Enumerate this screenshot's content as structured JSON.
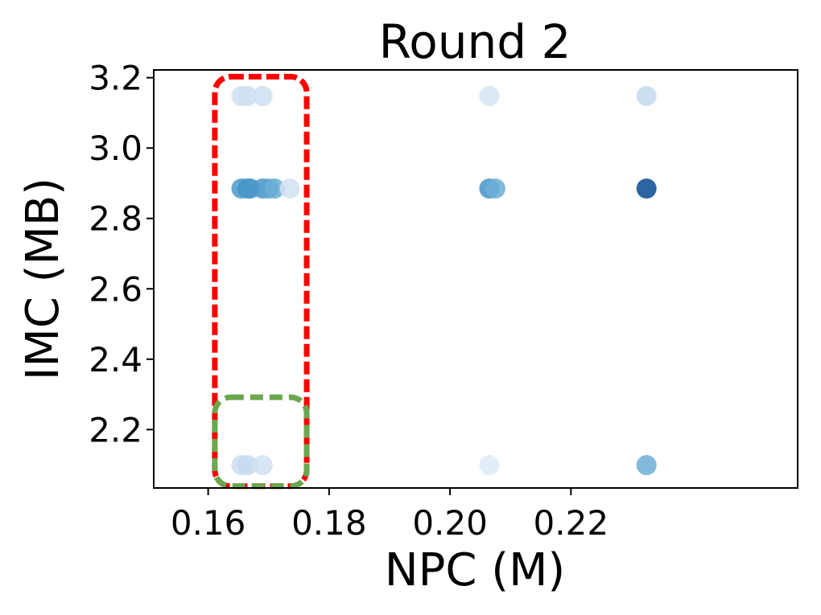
{
  "chart_data": {
    "type": "scatter",
    "title": "Round 2",
    "xlabel": "NPC (M)",
    "ylabel": "IMC (MB)",
    "xlim": [
      0.151,
      0.2575
    ],
    "ylim": [
      2.034,
      3.222
    ],
    "xticks": [
      {
        "value": 0.16,
        "label": "0.16"
      },
      {
        "value": 0.18,
        "label": "0.18"
      },
      {
        "value": 0.2,
        "label": "0.20"
      },
      {
        "value": 0.22,
        "label": "0.22"
      }
    ],
    "yticks": [
      {
        "value": 2.2,
        "label": "2.2"
      },
      {
        "value": 2.4,
        "label": "2.4"
      },
      {
        "value": 2.6,
        "label": "2.6"
      },
      {
        "value": 2.8,
        "label": "2.8"
      },
      {
        "value": 3.0,
        "label": "3.0"
      },
      {
        "value": 3.2,
        "label": "3.2"
      }
    ],
    "grid": false,
    "colormap": "Blues",
    "points": [
      {
        "x": 0.1655,
        "y": 3.148,
        "shade": 0.22
      },
      {
        "x": 0.1665,
        "y": 3.148,
        "shade": 0.22
      },
      {
        "x": 0.169,
        "y": 3.148,
        "shade": 0.22
      },
      {
        "x": 0.2065,
        "y": 3.148,
        "shade": 0.18
      },
      {
        "x": 0.2325,
        "y": 3.148,
        "shade": 0.26
      },
      {
        "x": 0.1655,
        "y": 2.885,
        "shade": 0.6
      },
      {
        "x": 0.1665,
        "y": 2.885,
        "shade": 0.62
      },
      {
        "x": 0.167,
        "y": 2.885,
        "shade": 0.6
      },
      {
        "x": 0.169,
        "y": 2.885,
        "shade": 0.6
      },
      {
        "x": 0.17,
        "y": 2.885,
        "shade": 0.55
      },
      {
        "x": 0.171,
        "y": 2.885,
        "shade": 0.5
      },
      {
        "x": 0.1735,
        "y": 2.885,
        "shade": 0.2
      },
      {
        "x": 0.2065,
        "y": 2.885,
        "shade": 0.62
      },
      {
        "x": 0.2075,
        "y": 2.885,
        "shade": 0.5
      },
      {
        "x": 0.2325,
        "y": 2.885,
        "shade": 0.9
      },
      {
        "x": 0.1655,
        "y": 2.099,
        "shade": 0.22
      },
      {
        "x": 0.1665,
        "y": 2.099,
        "shade": 0.25
      },
      {
        "x": 0.169,
        "y": 2.099,
        "shade": 0.2
      },
      {
        "x": 0.2065,
        "y": 2.099,
        "shade": 0.13
      },
      {
        "x": 0.2325,
        "y": 2.099,
        "shade": 0.5
      }
    ],
    "annotations": [
      {
        "shape": "rounded-rect",
        "style": "dashed",
        "color": "#ff0000",
        "x_range": [
          0.1611,
          0.1763
        ],
        "y_range": [
          2.039,
          3.203
        ]
      },
      {
        "shape": "rounded-rect",
        "style": "dashed",
        "color": "#6aa84f",
        "x_range": [
          0.1611,
          0.1763
        ],
        "y_range": [
          2.039,
          2.292
        ]
      }
    ]
  }
}
